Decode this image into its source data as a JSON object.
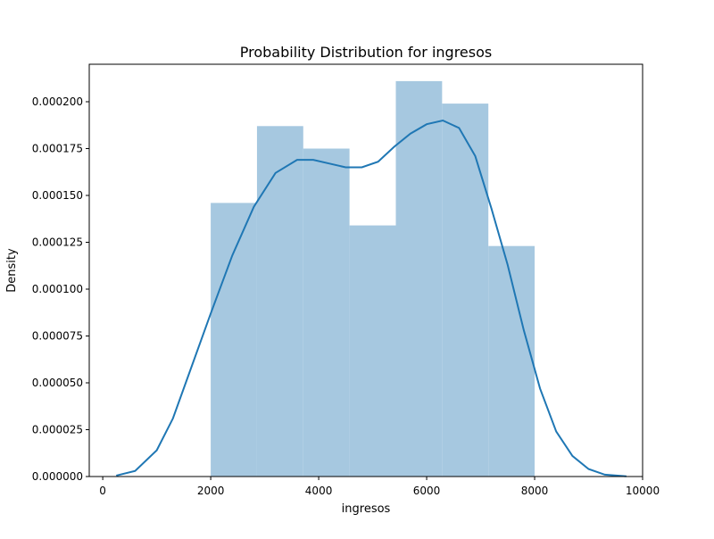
{
  "chart_data": {
    "type": "bar",
    "title": "Probability Distribution for ingresos",
    "xlabel": "ingresos",
    "ylabel": "Density",
    "xlim": [
      -250,
      10000
    ],
    "ylim": [
      0,
      0.00022
    ],
    "x_ticks": [
      0,
      2000,
      4000,
      6000,
      8000,
      10000
    ],
    "x_tick_labels": [
      "0",
      "2000",
      "4000",
      "6000",
      "8000",
      "10000"
    ],
    "y_ticks": [
      0,
      2.5e-05,
      5e-05,
      7.5e-05,
      0.0001,
      0.000125,
      0.00015,
      0.000175,
      0.0002
    ],
    "y_tick_labels": [
      "0.000000",
      "0.000025",
      "0.000050",
      "0.000075",
      "0.000100",
      "0.000125",
      "0.000150",
      "0.000175",
      "0.000200"
    ],
    "grid": false,
    "histogram": {
      "bin_edges": [
        2000,
        2857,
        3714,
        4571,
        5429,
        6286,
        7143,
        8000
      ],
      "density": [
        0.000146,
        0.000187,
        0.000175,
        0.000134,
        0.000211,
        0.000199,
        0.000123
      ],
      "color": "#a6c8e0"
    },
    "kde": {
      "x": [
        250,
        600,
        1000,
        1300,
        1600,
        2000,
        2400,
        2800,
        3200,
        3600,
        3900,
        4200,
        4500,
        4800,
        5100,
        5400,
        5700,
        6000,
        6300,
        6600,
        6900,
        7200,
        7500,
        7800,
        8100,
        8400,
        8700,
        9000,
        9300,
        9700
      ],
      "y": [
        5e-07,
        3e-06,
        1.4e-05,
        3.1e-05,
        5.5e-05,
        8.7e-05,
        0.000118,
        0.000144,
        0.000162,
        0.000169,
        0.000169,
        0.000167,
        0.000165,
        0.000165,
        0.000168,
        0.000176,
        0.000183,
        0.000188,
        0.00019,
        0.000186,
        0.000171,
        0.000143,
        0.000113,
        7.8e-05,
        4.7e-05,
        2.4e-05,
        1.1e-05,
        4e-06,
        1e-06,
        1e-07
      ],
      "color": "#1f77b4"
    }
  }
}
